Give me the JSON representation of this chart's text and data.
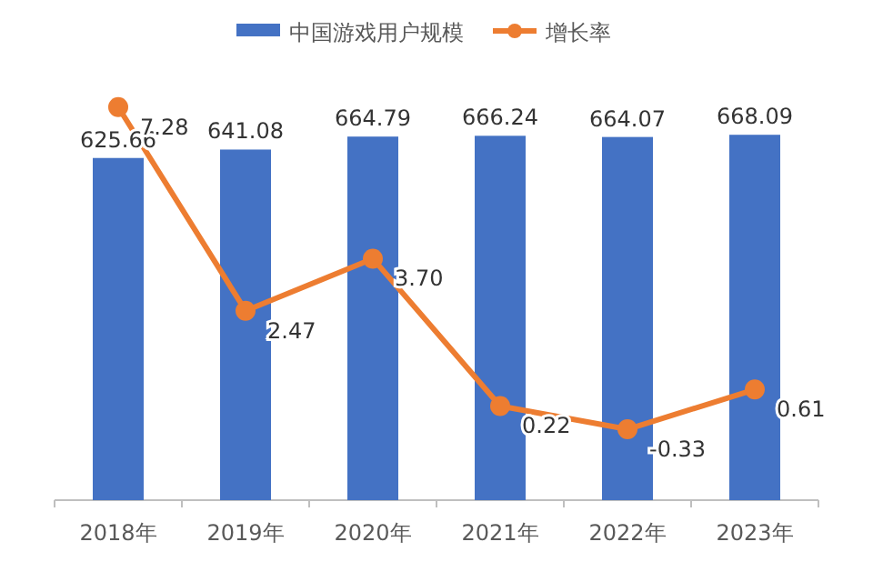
{
  "chart_data": {
    "type": "bar",
    "categories": [
      "2018年",
      "2019年",
      "2020年",
      "2021年",
      "2022年",
      "2023年"
    ],
    "series": [
      {
        "name": "中国游戏用户规模",
        "color": "#4472c4",
        "values": [
          625.66,
          641.08,
          664.79,
          666.24,
          664.07,
          668.09
        ],
        "value_labels": [
          "625.66",
          "641.08",
          "664.79",
          "666.24",
          "664.07",
          "668.09"
        ]
      },
      {
        "name": "增长率",
        "type": "line",
        "axis": "y2",
        "color": "#ed7d31",
        "values": [
          7.28,
          2.47,
          3.7,
          0.22,
          -0.33,
          0.61
        ],
        "value_labels": [
          "7.28",
          "2.47",
          "3.70",
          "0.22",
          "-0.33",
          "0.61"
        ]
      }
    ],
    "legend": "top",
    "marker": "circle",
    "tick_labels": "x"
  }
}
